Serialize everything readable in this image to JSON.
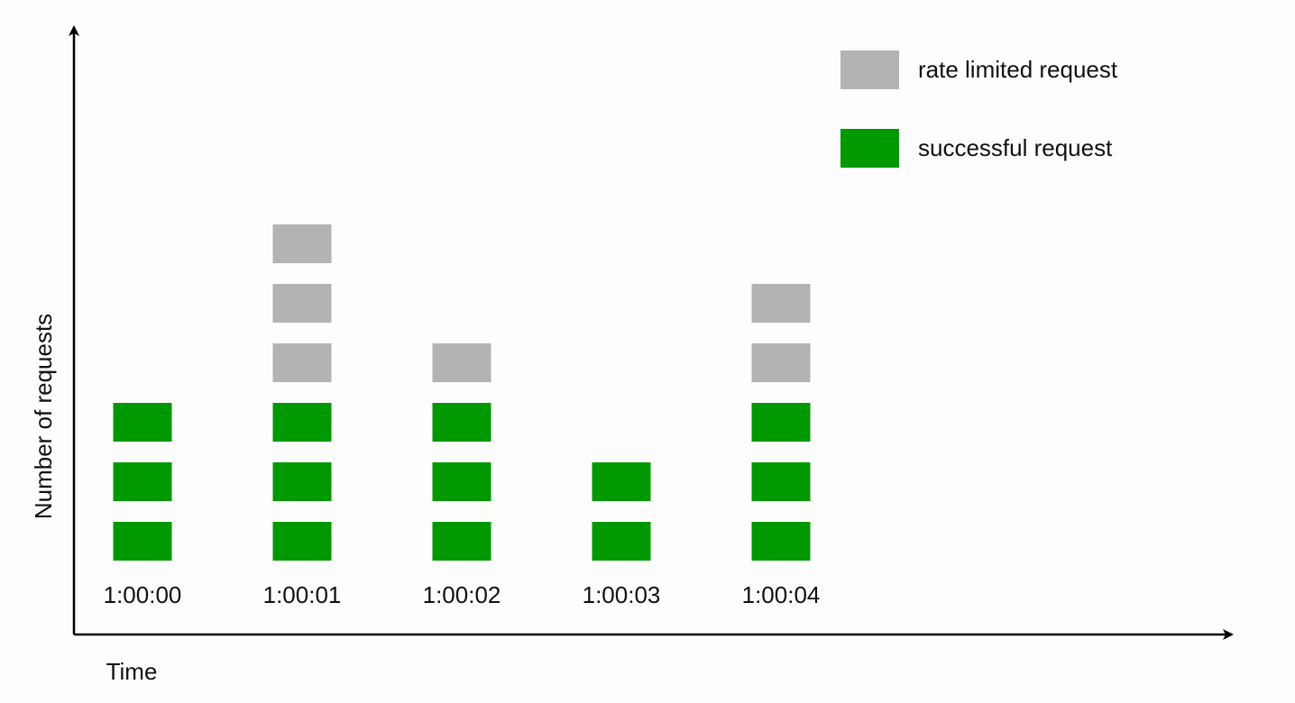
{
  "chart_data": {
    "type": "block-stack",
    "x_label": "Time",
    "y_label": "Number of requests",
    "categories": [
      "1:00:00",
      "1:00:01",
      "1:00:02",
      "1:00:03",
      "1:00:04"
    ],
    "series": [
      {
        "name": "successful request",
        "color": "#009900",
        "values": [
          3,
          3,
          3,
          2,
          3
        ]
      },
      {
        "name": "rate limited request",
        "color": "#b3b3b3",
        "values": [
          0,
          3,
          1,
          0,
          2
        ]
      }
    ]
  }
}
